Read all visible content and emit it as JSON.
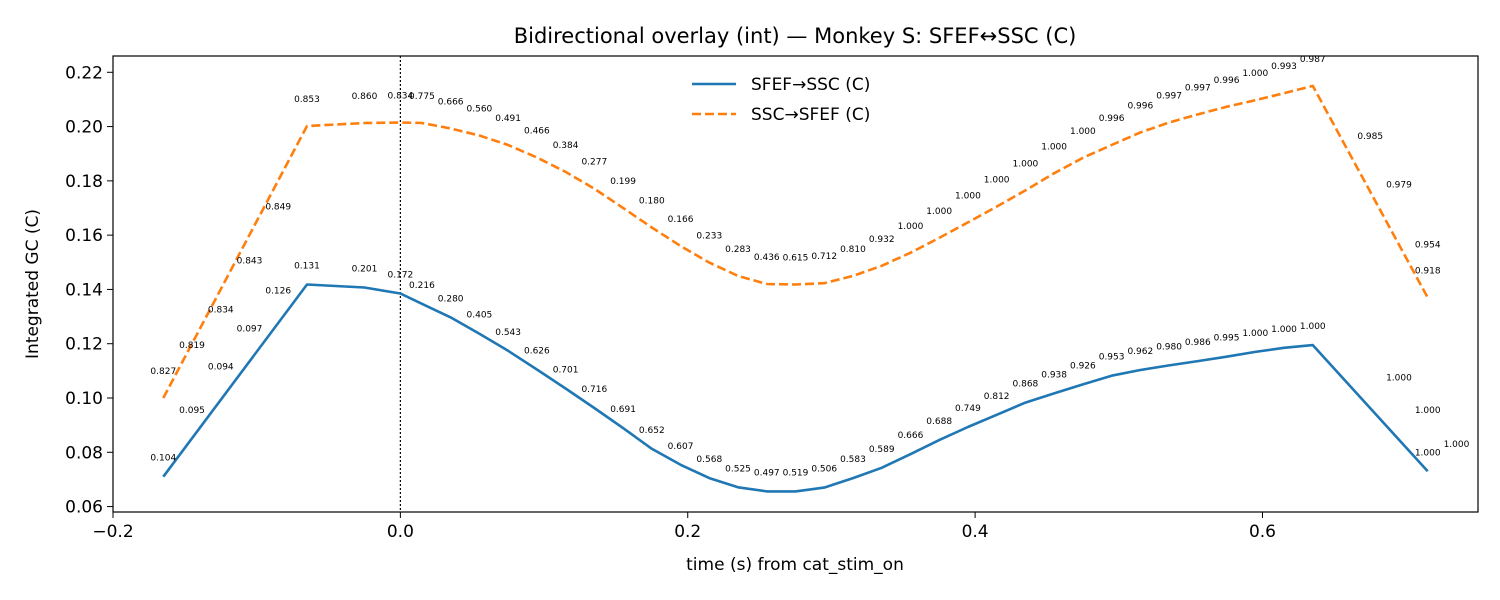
{
  "chart_data": {
    "type": "line",
    "title": "Bidirectional overlay (int) — Monkey S: SFEF↔SSC (C)",
    "xlabel": "time (s) from cat_stim_on",
    "ylabel": "Integrated GC (C)",
    "xlim": [
      -0.2,
      0.75
    ],
    "ylim": [
      0.058,
      0.226
    ],
    "xticks": [
      -0.2,
      0.0,
      0.2,
      0.4,
      0.6
    ],
    "xtick_labels": [
      "−0.2",
      "0.0",
      "0.2",
      "0.4",
      "0.6"
    ],
    "yticks": [
      0.06,
      0.08,
      0.1,
      0.12,
      0.14,
      0.16,
      0.18,
      0.2,
      0.22
    ],
    "ytick_labels": [
      "0.06",
      "0.08",
      "0.10",
      "0.12",
      "0.14",
      "0.16",
      "0.18",
      "0.20",
      "0.22"
    ],
    "vline_x": 0.0,
    "grid": false,
    "legend_position": "top-center",
    "x": [
      -0.165,
      -0.065,
      -0.025,
      0.0,
      0.015,
      0.035,
      0.055,
      0.075,
      0.095,
      0.115,
      0.135,
      0.155,
      0.175,
      0.195,
      0.215,
      0.235,
      0.255,
      0.275,
      0.295,
      0.315,
      0.335,
      0.355,
      0.375,
      0.395,
      0.415,
      0.435,
      0.455,
      0.475,
      0.495,
      0.515,
      0.535,
      0.555,
      0.575,
      0.595,
      0.615,
      0.635,
      0.715
    ],
    "series": [
      {
        "name": "SFEF→SSC (C)",
        "color": "#1f77b4",
        "dash": "solid",
        "values": [
          0.071,
          0.1418,
          0.1407,
          0.1385,
          0.1347,
          0.1297,
          0.1237,
          0.1174,
          0.1105,
          0.1035,
          0.0963,
          0.0889,
          0.0813,
          0.0754,
          0.0705,
          0.0671,
          0.0656,
          0.0656,
          0.067,
          0.0705,
          0.0743,
          0.0793,
          0.0845,
          0.0893,
          0.0938,
          0.0983,
          0.1017,
          0.105,
          0.1082,
          0.1103,
          0.112,
          0.1136,
          0.1152,
          0.117,
          0.1185,
          0.1195,
          0.073
        ],
        "labels": [
          "0.104",
          "0.131",
          "0.201",
          "0.172",
          "0.216",
          "0.280",
          "0.405",
          "0.543",
          "0.626",
          "0.701",
          "0.716",
          "0.691",
          "0.652",
          "0.607",
          "0.568",
          "0.525",
          "0.497",
          "0.519",
          "0.506",
          "0.583",
          "0.589",
          "0.666",
          "0.688",
          "0.749",
          "0.812",
          "0.868",
          "0.938",
          "0.926",
          "0.953",
          "0.962",
          "0.980",
          "0.986",
          "0.995",
          "1.000",
          "1.000",
          "1.000",
          "1.000"
        ],
        "extra_labels": [
          {
            "x": -0.145,
            "y": 0.0945,
            "text": "0.095"
          },
          {
            "x": -0.125,
            "y": 0.1105,
            "text": "0.094"
          },
          {
            "x": -0.105,
            "y": 0.1245,
            "text": "0.097"
          },
          {
            "x": -0.085,
            "y": 0.1385,
            "text": "0.126"
          },
          {
            "x": 0.695,
            "y": 0.1065,
            "text": "1.000"
          },
          {
            "x": 0.715,
            "y": 0.0945,
            "text": "1.000"
          },
          {
            "x": 0.735,
            "y": 0.082,
            "text": "1.000"
          }
        ]
      },
      {
        "name": "SSC→SFEF (C)",
        "color": "#ff7f0e",
        "dash": "dashed",
        "values": [
          0.1,
          0.2002,
          0.2013,
          0.2015,
          0.2013,
          0.1993,
          0.1967,
          0.1932,
          0.1886,
          0.1833,
          0.1771,
          0.17,
          0.1628,
          0.156,
          0.1499,
          0.145,
          0.142,
          0.1418,
          0.1423,
          0.145,
          0.1487,
          0.1535,
          0.159,
          0.1647,
          0.1705,
          0.1765,
          0.1828,
          0.1885,
          0.1932,
          0.1978,
          0.2015,
          0.2045,
          0.2073,
          0.2097,
          0.2123,
          0.215,
          0.137
        ],
        "labels": [
          "0.827",
          "0.853",
          "0.860",
          "0.834",
          "0.775",
          "0.666",
          "0.560",
          "0.491",
          "0.466",
          "0.384",
          "0.277",
          "0.199",
          "0.180",
          "0.166",
          "0.233",
          "0.283",
          "0.436",
          "0.615",
          "0.712",
          "0.810",
          "0.932",
          "1.000",
          "1.000",
          "1.000",
          "1.000",
          "1.000",
          "1.000",
          "1.000",
          "0.996",
          "0.996",
          "0.997",
          "0.997",
          "0.996",
          "1.000",
          "0.993",
          "0.987",
          "0.918"
        ],
        "extra_labels": [
          {
            "x": -0.145,
            "y": 0.1185,
            "text": "0.819"
          },
          {
            "x": -0.125,
            "y": 0.1315,
            "text": "0.834"
          },
          {
            "x": -0.105,
            "y": 0.1495,
            "text": "0.843"
          },
          {
            "x": -0.085,
            "y": 0.1695,
            "text": "0.849"
          },
          {
            "x": 0.675,
            "y": 0.1955,
            "text": "0.985"
          },
          {
            "x": 0.695,
            "y": 0.1775,
            "text": "0.979"
          },
          {
            "x": 0.715,
            "y": 0.1555,
            "text": "0.954"
          }
        ]
      }
    ]
  }
}
